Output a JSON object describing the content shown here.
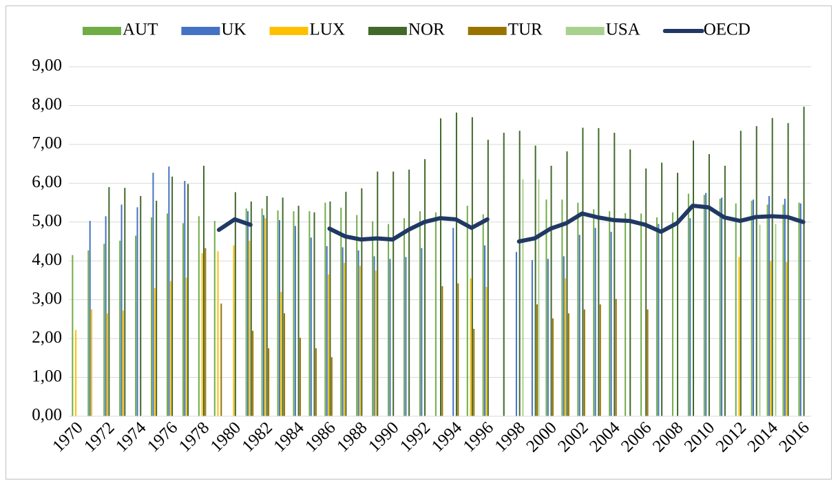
{
  "chart_data": {
    "type": "bar",
    "categories": [
      "1970",
      null,
      "1972",
      null,
      "1974",
      null,
      "1976",
      null,
      "1978",
      null,
      "1980",
      null,
      "1982",
      null,
      "1984",
      null,
      "1986",
      null,
      "1988",
      null,
      "1990",
      null,
      "1992",
      null,
      "1994",
      null,
      "1996",
      null,
      "1998",
      null,
      "2000",
      null,
      "2002",
      null,
      "2004",
      null,
      "2006",
      null,
      "2008",
      null,
      "2010",
      null,
      "2012",
      null,
      "2014",
      null,
      "2016"
    ],
    "series": [
      {
        "name": "AUT",
        "color": "#70ad47",
        "values": [
          4.15,
          4.27,
          4.44,
          4.52,
          4.65,
          5.12,
          5.22,
          4.97,
          5.15,
          5.03,
          null,
          5.35,
          5.35,
          5.3,
          5.28,
          5.28,
          5.5,
          5.37,
          5.18,
          5.02,
          4.95,
          5.1,
          5.28,
          5.25,
          null,
          5.42,
          5.2,
          null,
          null,
          null,
          5.58,
          5.58,
          5.5,
          5.33,
          5.28,
          5.23,
          5.22,
          5.12,
          5.25,
          5.73,
          5.7,
          5.6,
          5.48,
          5.55,
          5.45,
          5.45,
          5.5
        ]
      },
      {
        "name": "UK",
        "color": "#4472c4",
        "values": [
          null,
          5.03,
          5.15,
          5.45,
          5.38,
          6.27,
          6.43,
          6.06,
          null,
          null,
          null,
          5.28,
          5.18,
          5.05,
          4.9,
          4.6,
          4.38,
          4.35,
          4.27,
          4.12,
          4.05,
          4.1,
          4.33,
          null,
          4.85,
          null,
          4.4,
          null,
          4.23,
          4.02,
          4.05,
          4.12,
          4.67,
          4.85,
          4.75,
          null,
          null,
          4.95,
          null,
          5.1,
          5.75,
          5.63,
          null,
          5.58,
          5.67,
          5.6,
          5.48
        ]
      },
      {
        "name": "LUX",
        "color": "#ffc000",
        "values": [
          2.22,
          2.75,
          2.65,
          2.72,
          null,
          3.3,
          3.48,
          3.57,
          4.2,
          4.25,
          4.4,
          4.52,
          5.1,
          3.2,
          null,
          null,
          3.65,
          3.95,
          3.87,
          3.75,
          null,
          null,
          null,
          null,
          null,
          3.55,
          3.33,
          null,
          null,
          null,
          null,
          3.55,
          null,
          null,
          null,
          null,
          null,
          null,
          null,
          null,
          null,
          null,
          4.1,
          null,
          4.0,
          3.97,
          null
        ]
      },
      {
        "name": "NOR",
        "color": "#43682b",
        "values": [
          null,
          null,
          5.9,
          5.88,
          5.67,
          5.55,
          6.17,
          5.98,
          6.45,
          null,
          5.77,
          5.53,
          5.67,
          5.63,
          5.42,
          5.25,
          5.53,
          5.78,
          5.87,
          6.3,
          6.3,
          6.35,
          6.62,
          7.67,
          7.82,
          7.7,
          7.12,
          7.3,
          7.35,
          6.97,
          6.45,
          6.82,
          7.43,
          7.42,
          7.3,
          6.87,
          6.38,
          6.53,
          6.27,
          7.1,
          6.75,
          6.45,
          7.35,
          7.47,
          7.68,
          7.55,
          7.97
        ]
      },
      {
        "name": "TUR",
        "color": "#997300",
        "values": [
          null,
          null,
          null,
          null,
          null,
          null,
          null,
          null,
          4.33,
          2.9,
          null,
          2.2,
          1.75,
          2.65,
          2.02,
          1.75,
          1.52,
          null,
          null,
          null,
          null,
          null,
          null,
          3.35,
          3.42,
          2.25,
          null,
          null,
          null,
          2.88,
          2.52,
          2.65,
          2.75,
          2.88,
          3.02,
          null,
          2.75,
          null,
          null,
          null,
          null,
          null,
          null,
          null,
          null,
          null,
          null
        ]
      },
      {
        "name": "USA",
        "color": "#a9d18e",
        "values": [
          null,
          null,
          null,
          null,
          null,
          null,
          null,
          null,
          null,
          null,
          null,
          null,
          null,
          null,
          null,
          null,
          null,
          null,
          null,
          null,
          null,
          null,
          null,
          null,
          null,
          null,
          null,
          null,
          6.1,
          6.1,
          null,
          null,
          null,
          null,
          null,
          null,
          null,
          null,
          null,
          null,
          null,
          null,
          null,
          4.93,
          4.95,
          null,
          null
        ]
      },
      {
        "name": "OECD",
        "color": "#203864",
        "type": "line",
        "values": [
          null,
          null,
          null,
          null,
          null,
          null,
          null,
          null,
          null,
          4.8,
          5.07,
          4.93,
          null,
          null,
          null,
          null,
          4.83,
          4.63,
          4.55,
          4.58,
          4.55,
          4.8,
          5.0,
          5.1,
          5.07,
          4.85,
          5.07,
          null,
          4.5,
          4.58,
          4.83,
          4.97,
          5.22,
          5.12,
          5.05,
          5.03,
          4.93,
          4.75,
          4.97,
          5.42,
          5.38,
          5.12,
          5.03,
          5.13,
          5.15,
          5.13,
          5.0
        ]
      }
    ],
    "ylim": [
      0,
      9
    ],
    "yticks": [
      {
        "value": 0,
        "label": "0,00"
      },
      {
        "value": 1,
        "label": "1,00"
      },
      {
        "value": 2,
        "label": "2,00"
      },
      {
        "value": 3,
        "label": "3,00"
      },
      {
        "value": 4,
        "label": "4,00"
      },
      {
        "value": 5,
        "label": "5,00"
      },
      {
        "value": 6,
        "label": "6,00"
      },
      {
        "value": 7,
        "label": "7,00"
      },
      {
        "value": 8,
        "label": "8,00"
      },
      {
        "value": 9,
        "label": "9,00"
      }
    ],
    "grid": true,
    "legend": "top"
  }
}
